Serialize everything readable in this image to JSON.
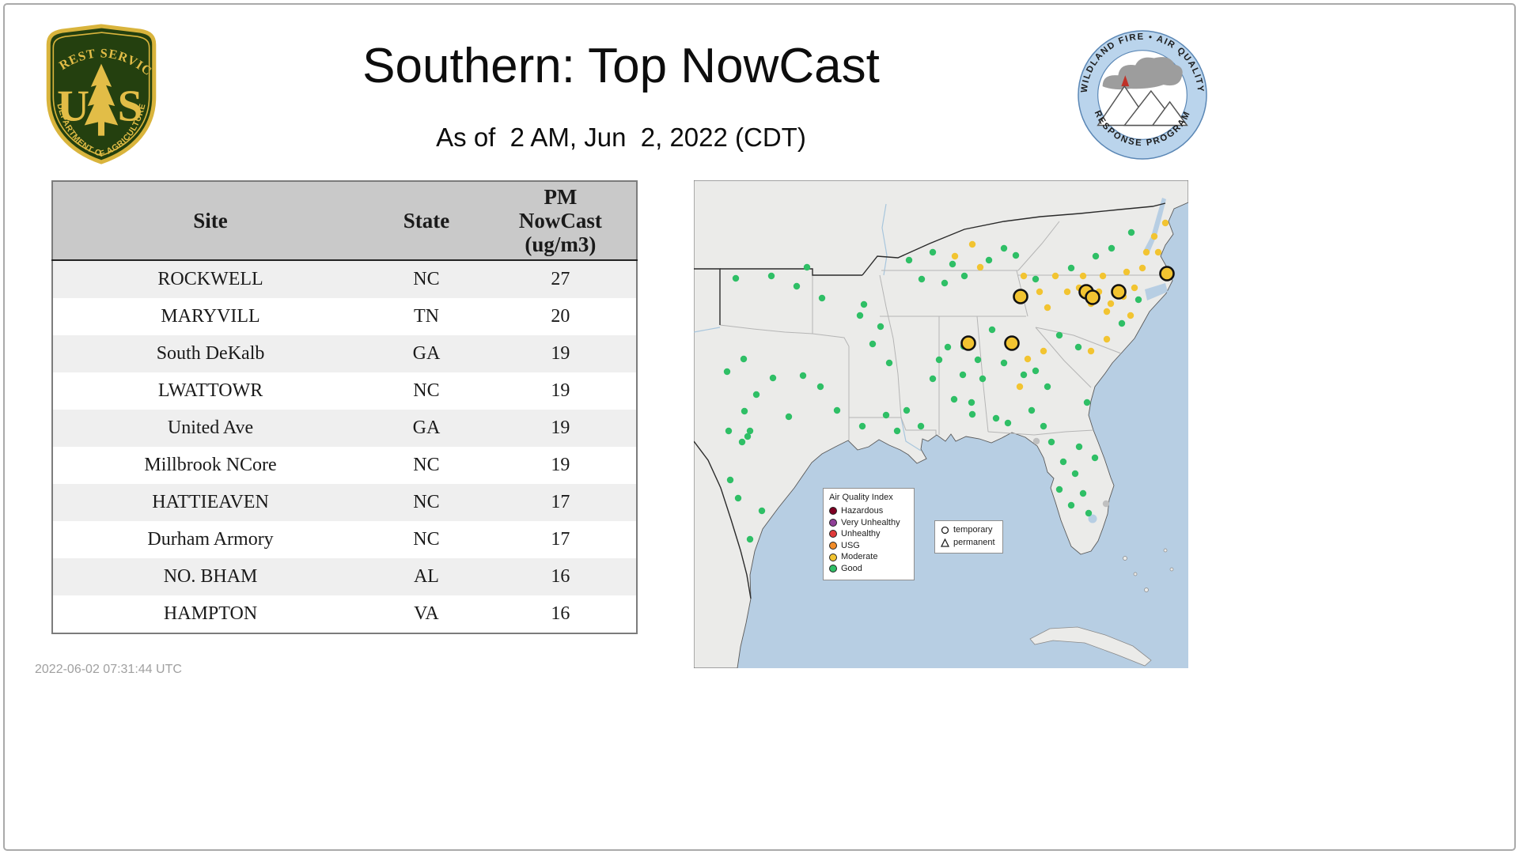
{
  "header": {
    "title": "Southern: Top NowCast",
    "subtitle": "As of  2 AM, Jun  2, 2022 (CDT)"
  },
  "footer": {
    "timestamp": "2022-06-02 07:31:44 UTC"
  },
  "usfs_logo": {
    "arc_top": "FOREST SERVICE",
    "letter_left": "U",
    "letter_right": "S",
    "arc_bottom": "DEPARTMENT OF AGRICULTURE",
    "colors": {
      "shield": "#24400f",
      "gold": "#e2bd47"
    }
  },
  "program_logo": {
    "arc_top": "WILDLAND FIRE • AIR QUALITY",
    "arc_bottom": "RESPONSE PROGRAM",
    "ring_color": "#bad4ec"
  },
  "table": {
    "headers": {
      "site": "Site",
      "state": "State",
      "pm_lines": [
        "PM",
        "NowCast",
        "(ug/m3)"
      ]
    },
    "rows": [
      {
        "site": "ROCKWELL",
        "state": "NC",
        "value": "27"
      },
      {
        "site": "MARYVILL",
        "state": "TN",
        "value": "20"
      },
      {
        "site": "South DeKalb",
        "state": "GA",
        "value": "19"
      },
      {
        "site": "LWATTOWR",
        "state": "NC",
        "value": "19"
      },
      {
        "site": "United Ave",
        "state": "GA",
        "value": "19"
      },
      {
        "site": "Millbrook NCore",
        "state": "NC",
        "value": "19"
      },
      {
        "site": "HATTIEAVEN",
        "state": "NC",
        "value": "17"
      },
      {
        "site": "Durham Armory",
        "state": "NC",
        "value": "17"
      },
      {
        "site": "NO. BHAM",
        "state": "AL",
        "value": "16"
      },
      {
        "site": "HAMPTON",
        "state": "VA",
        "value": "16"
      }
    ]
  },
  "chart_data": {
    "type": "table",
    "title": "Southern: Top NowCast",
    "subtitle": "As of  2 AM, Jun  2, 2022 (CDT)",
    "columns": [
      "Site",
      "State",
      "PM NowCast (ug/m3)"
    ],
    "rows": [
      [
        "ROCKWELL",
        "NC",
        27
      ],
      [
        "MARYVILL",
        "TN",
        20
      ],
      [
        "South DeKalb",
        "GA",
        19
      ],
      [
        "LWATTOWR",
        "NC",
        19
      ],
      [
        "United Ave",
        "GA",
        19
      ],
      [
        "Millbrook NCore",
        "NC",
        19
      ],
      [
        "HATTIEAVEN",
        "NC",
        17
      ],
      [
        "Durham Armory",
        "NC",
        17
      ],
      [
        "NO. BHAM",
        "AL",
        16
      ],
      [
        "HAMPTON",
        "VA",
        16
      ]
    ]
  },
  "map": {
    "water_color": "#b7cee3",
    "land_color": "#ebebe9",
    "aqi_legend": {
      "title": "Air Quality Index",
      "items": [
        {
          "label": "Hazardous",
          "color": "#7e0023"
        },
        {
          "label": "Very Unhealthy",
          "color": "#8f3f97"
        },
        {
          "label": "Unhealthy",
          "color": "#e03a3a"
        },
        {
          "label": "USG",
          "color": "#f28c28"
        },
        {
          "label": "Moderate",
          "color": "#f2c431"
        },
        {
          "label": "Good",
          "color": "#2fbf66"
        }
      ]
    },
    "marker_legend": {
      "items": [
        {
          "shape": "circle",
          "label": "temporary"
        },
        {
          "shape": "triangle",
          "label": "permanent"
        }
      ]
    },
    "dot_colors": {
      "g": "#2fbf66",
      "y": "#f2c431",
      "n": "#c0c0c0"
    },
    "points": [
      [
        53,
        124,
        "g"
      ],
      [
        98,
        121,
        "g"
      ],
      [
        130,
        134,
        "g"
      ],
      [
        162,
        149,
        "g"
      ],
      [
        143,
        110,
        "g"
      ],
      [
        210,
        171,
        "g"
      ],
      [
        63,
        226,
        "g"
      ],
      [
        42,
        242,
        "g"
      ],
      [
        79,
        271,
        "g"
      ],
      [
        64,
        292,
        "g"
      ],
      [
        44,
        317,
        "g"
      ],
      [
        71,
        317,
        "g"
      ],
      [
        61,
        331,
        "g"
      ],
      [
        68,
        324,
        "g"
      ],
      [
        86,
        418,
        "g"
      ],
      [
        71,
        454,
        "g"
      ],
      [
        46,
        379,
        "g"
      ],
      [
        56,
        402,
        "g"
      ],
      [
        120,
        299,
        "g"
      ],
      [
        181,
        291,
        "g"
      ],
      [
        160,
        261,
        "g"
      ],
      [
        138,
        247,
        "g"
      ],
      [
        100,
        250,
        "g"
      ],
      [
        215,
        157,
        "g"
      ],
      [
        236,
        185,
        "g"
      ],
      [
        226,
        207,
        "g"
      ],
      [
        247,
        231,
        "g"
      ],
      [
        213,
        311,
        "g"
      ],
      [
        243,
        297,
        "g"
      ],
      [
        269,
        291,
        "g"
      ],
      [
        287,
        311,
        "g"
      ],
      [
        257,
        317,
        "g"
      ],
      [
        302,
        251,
        "g"
      ],
      [
        321,
        211,
        "g"
      ],
      [
        340,
        246,
        "g"
      ],
      [
        329,
        277,
        "g"
      ],
      [
        310,
        227,
        "g"
      ],
      [
        365,
        251,
        "g"
      ],
      [
        351,
        281,
        "g"
      ],
      [
        377,
        189,
        "g"
      ],
      [
        359,
        227,
        "g"
      ],
      [
        341,
        210,
        "g"
      ],
      [
        272,
        101,
        "g"
      ],
      [
        302,
        91,
        "g"
      ],
      [
        327,
        106,
        "g"
      ],
      [
        352,
        81,
        "y"
      ],
      [
        373,
        101,
        "g"
      ],
      [
        392,
        86,
        "g"
      ],
      [
        288,
        125,
        "g"
      ],
      [
        317,
        130,
        "g"
      ],
      [
        407,
        95,
        "g"
      ],
      [
        432,
        125,
        "g"
      ],
      [
        342,
        121,
        "g"
      ],
      [
        330,
        96,
        "y"
      ],
      [
        362,
        110,
        "y"
      ],
      [
        447,
        161,
        "y"
      ],
      [
        472,
        141,
        "y"
      ],
      [
        487,
        136,
        "y"
      ],
      [
        502,
        156,
        "y"
      ],
      [
        543,
        147,
        "y"
      ],
      [
        557,
        136,
        "y"
      ],
      [
        567,
        111,
        "y"
      ],
      [
        572,
        91,
        "y"
      ],
      [
        582,
        71,
        "y"
      ],
      [
        596,
        54,
        "y"
      ],
      [
        517,
        121,
        "y"
      ],
      [
        532,
        141,
        "y"
      ],
      [
        522,
        166,
        "y"
      ],
      [
        552,
        171,
        "y"
      ],
      [
        457,
        121,
        "y"
      ],
      [
        477,
        111,
        "g"
      ],
      [
        492,
        121,
        "y"
      ],
      [
        417,
        121,
        "y"
      ],
      [
        437,
        141,
        "y"
      ],
      [
        512,
        141,
        "y"
      ],
      [
        527,
        156,
        "y"
      ],
      [
        547,
        116,
        "y"
      ],
      [
        587,
        91,
        "y"
      ],
      [
        562,
        151,
        "g"
      ],
      [
        508,
        96,
        "g"
      ],
      [
        528,
        86,
        "g"
      ],
      [
        553,
        66,
        "g"
      ],
      [
        422,
        226,
        "y"
      ],
      [
        432,
        241,
        "g"
      ],
      [
        412,
        261,
        "y"
      ],
      [
        427,
        291,
        "g"
      ],
      [
        447,
        261,
        "g"
      ],
      [
        417,
        246,
        "g"
      ],
      [
        392,
        231,
        "g"
      ],
      [
        442,
        216,
        "y"
      ],
      [
        462,
        196,
        "g"
      ],
      [
        486,
        211,
        "g"
      ],
      [
        502,
        216,
        "y"
      ],
      [
        522,
        201,
        "y"
      ],
      [
        541,
        181,
        "g"
      ],
      [
        497,
        281,
        "g"
      ],
      [
        452,
        331,
        "g"
      ],
      [
        467,
        356,
        "g"
      ],
      [
        482,
        371,
        "g"
      ],
      [
        499,
        421,
        "g"
      ],
      [
        477,
        411,
        "g"
      ],
      [
        462,
        391,
        "g"
      ],
      [
        487,
        337,
        "g"
      ],
      [
        442,
        311,
        "g"
      ],
      [
        382,
        301,
        "g"
      ],
      [
        352,
        296,
        "g"
      ],
      [
        397,
        307,
        "g"
      ],
      [
        507,
        351,
        "g"
      ],
      [
        492,
        396,
        "g"
      ],
      [
        433,
        330,
        "n"
      ],
      [
        521,
        409,
        "n"
      ],
      [
        413,
        147,
        "y",
        1
      ],
      [
        496,
        141,
        "y",
        1
      ],
      [
        504,
        148,
        "y",
        1
      ],
      [
        537,
        141,
        "y",
        1
      ],
      [
        402,
        206,
        "y",
        1
      ],
      [
        347,
        206,
        "y",
        1
      ],
      [
        598,
        118,
        "y",
        1
      ]
    ]
  }
}
